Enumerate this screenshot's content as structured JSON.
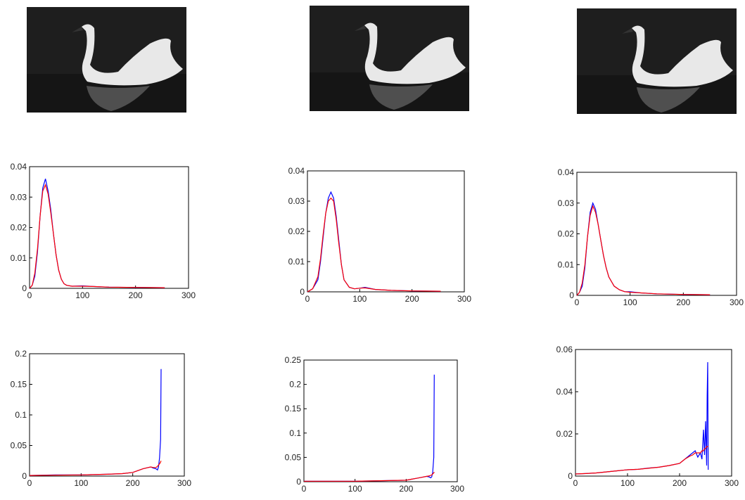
{
  "chart_data": [
    {
      "type": "line",
      "x": [
        0,
        5,
        10,
        15,
        20,
        25,
        30,
        35,
        40,
        45,
        50,
        55,
        60,
        65,
        70,
        80,
        100,
        120,
        150,
        200,
        255
      ],
      "series": [
        {
          "color": "#0000ff",
          "values": [
            0,
            0.001,
            0.004,
            0.012,
            0.024,
            0.033,
            0.036,
            0.032,
            0.026,
            0.018,
            0.011,
            0.006,
            0.003,
            0.0015,
            0.001,
            0.0007,
            0.0008,
            0.0006,
            0.0004,
            0.0003,
            0.0002
          ]
        },
        {
          "color": "#ff0000",
          "values": [
            0,
            0.001,
            0.005,
            0.013,
            0.024,
            0.032,
            0.034,
            0.031,
            0.025,
            0.018,
            0.011,
            0.006,
            0.003,
            0.0015,
            0.001,
            0.0007,
            0.0007,
            0.0006,
            0.0004,
            0.0003,
            0.0002
          ]
        }
      ],
      "xlim": [
        0,
        300
      ],
      "xticks": [
        0,
        100,
        200,
        300
      ],
      "ylim": [
        0,
        0.04
      ],
      "yticks": [
        0,
        0.01,
        0.02,
        0.03,
        0.04
      ]
    },
    {
      "type": "line",
      "x": [
        0,
        10,
        20,
        25,
        30,
        35,
        40,
        45,
        50,
        55,
        60,
        65,
        70,
        80,
        90,
        100,
        110,
        130,
        160,
        200,
        255
      ],
      "series": [
        {
          "color": "#0000ff",
          "values": [
            0,
            0.001,
            0.004,
            0.01,
            0.018,
            0.026,
            0.031,
            0.033,
            0.031,
            0.025,
            0.017,
            0.009,
            0.004,
            0.0015,
            0.001,
            0.0012,
            0.0015,
            0.0008,
            0.0005,
            0.0003,
            0.0002
          ]
        },
        {
          "color": "#ff0000",
          "values": [
            0,
            0.001,
            0.005,
            0.011,
            0.019,
            0.026,
            0.03,
            0.031,
            0.03,
            0.024,
            0.016,
            0.009,
            0.004,
            0.0015,
            0.001,
            0.0012,
            0.0013,
            0.0008,
            0.0005,
            0.0003,
            0.0002
          ]
        }
      ],
      "xlim": [
        0,
        300
      ],
      "xticks": [
        0,
        100,
        200,
        300
      ],
      "ylim": [
        0,
        0.04
      ],
      "yticks": [
        0,
        0.01,
        0.02,
        0.03,
        0.04
      ]
    },
    {
      "type": "line",
      "x": [
        0,
        5,
        10,
        15,
        20,
        25,
        30,
        35,
        40,
        45,
        50,
        55,
        60,
        70,
        80,
        90,
        100,
        120,
        150,
        200,
        250
      ],
      "series": [
        {
          "color": "#0000ff",
          "values": [
            0,
            0.001,
            0.003,
            0.009,
            0.019,
            0.027,
            0.03,
            0.028,
            0.023,
            0.018,
            0.013,
            0.009,
            0.006,
            0.003,
            0.0018,
            0.0012,
            0.0012,
            0.0008,
            0.0005,
            0.0003,
            0.0002
          ]
        },
        {
          "color": "#ff0000",
          "values": [
            0,
            0.001,
            0.004,
            0.01,
            0.019,
            0.026,
            0.029,
            0.027,
            0.023,
            0.018,
            0.013,
            0.009,
            0.006,
            0.003,
            0.0018,
            0.0012,
            0.001,
            0.0008,
            0.0005,
            0.0003,
            0.0002
          ]
        }
      ],
      "xlim": [
        0,
        300
      ],
      "xticks": [
        0,
        100,
        200,
        300
      ],
      "ylim": [
        0,
        0.04
      ],
      "yticks": [
        0,
        0.01,
        0.02,
        0.03,
        0.04
      ]
    },
    {
      "type": "line",
      "x": [
        0,
        50,
        100,
        150,
        180,
        200,
        210,
        220,
        230,
        235,
        240,
        245,
        248,
        250,
        252,
        254,
        255
      ],
      "series": [
        {
          "color": "#0000ff",
          "values": [
            0.001,
            0.002,
            0.002,
            0.003,
            0.004,
            0.006,
            0.009,
            0.012,
            0.014,
            0.015,
            0.013,
            0.012,
            0.01,
            0.015,
            0.03,
            0.06,
            0.175
          ]
        },
        {
          "color": "#ff0000",
          "values": [
            0.001,
            0.0015,
            0.002,
            0.003,
            0.004,
            0.006,
            0.009,
            0.012,
            0.014,
            0.015,
            0.014,
            0.014,
            0.016,
            0.018,
            0.02,
            0.023,
            0.025
          ]
        }
      ],
      "xlim": [
        0,
        300
      ],
      "xticks": [
        0,
        100,
        200,
        300
      ],
      "ylim": [
        0,
        0.2
      ],
      "yticks": [
        0,
        0.05,
        0.1,
        0.15,
        0.2
      ]
    },
    {
      "type": "line",
      "x": [
        0,
        50,
        100,
        150,
        200,
        210,
        220,
        230,
        240,
        245,
        248,
        250,
        252,
        254,
        255
      ],
      "series": [
        {
          "color": "#0000ff",
          "values": [
            0.001,
            0.001,
            0.001,
            0.002,
            0.003,
            0.005,
            0.007,
            0.009,
            0.011,
            0.01,
            0.008,
            0.01,
            0.02,
            0.05,
            0.22
          ]
        },
        {
          "color": "#ff0000",
          "values": [
            0.001,
            0.001,
            0.001,
            0.002,
            0.003,
            0.005,
            0.007,
            0.009,
            0.011,
            0.012,
            0.013,
            0.014,
            0.016,
            0.018,
            0.02
          ]
        }
      ],
      "xlim": [
        0,
        300
      ],
      "xticks": [
        0,
        100,
        200,
        300
      ],
      "ylim": [
        0,
        0.25
      ],
      "yticks": [
        0,
        0.05,
        0.1,
        0.15,
        0.2,
        0.25
      ]
    },
    {
      "type": "line",
      "x": [
        0,
        20,
        40,
        60,
        80,
        100,
        120,
        140,
        160,
        180,
        200,
        210,
        220,
        225,
        230,
        235,
        240,
        243,
        246,
        248,
        250,
        252,
        253,
        254,
        255
      ],
      "series": [
        {
          "color": "#0000ff",
          "values": [
            0.001,
            0.0012,
            0.0015,
            0.002,
            0.0025,
            0.003,
            0.0032,
            0.0038,
            0.0042,
            0.005,
            0.006,
            0.008,
            0.01,
            0.011,
            0.012,
            0.009,
            0.011,
            0.008,
            0.022,
            0.01,
            0.026,
            0.005,
            0.038,
            0.054,
            0.003
          ]
        },
        {
          "color": "#ff0000",
          "values": [
            0.001,
            0.0012,
            0.0015,
            0.002,
            0.0025,
            0.003,
            0.0032,
            0.0037,
            0.0042,
            0.005,
            0.006,
            0.008,
            0.0095,
            0.01,
            0.011,
            0.011,
            0.011,
            0.012,
            0.012,
            0.013,
            0.013,
            0.014,
            0.014,
            0.014,
            0.014
          ]
        }
      ],
      "xlim": [
        0,
        300
      ],
      "xticks": [
        0,
        100,
        200,
        300
      ],
      "ylim": [
        0,
        0.06
      ],
      "yticks": [
        0,
        0.02,
        0.04,
        0.06
      ]
    }
  ]
}
